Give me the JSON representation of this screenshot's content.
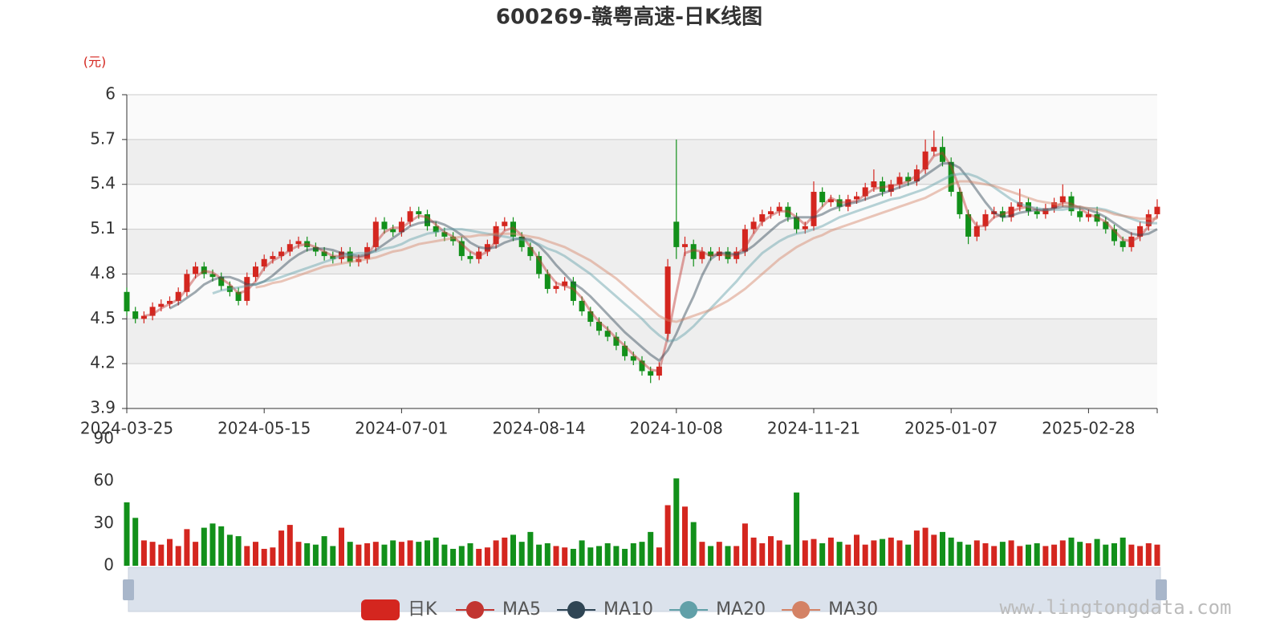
{
  "chart_data": [
    {
      "type": "candlestick",
      "title": "600269-赣粤高速-日K线图",
      "y_unit": "(元)",
      "name": "日K",
      "up_color": "#d4261f",
      "down_color": "#12901a",
      "categories": [
        "2024-03-25",
        null,
        null,
        null,
        null,
        null,
        null,
        null,
        null,
        null,
        null,
        null,
        null,
        null,
        null,
        null,
        "2024-05-15",
        null,
        null,
        null,
        null,
        null,
        null,
        null,
        null,
        null,
        null,
        null,
        null,
        null,
        null,
        null,
        "2024-07-01",
        null,
        null,
        null,
        null,
        null,
        null,
        null,
        null,
        null,
        null,
        null,
        null,
        null,
        null,
        null,
        "2024-08-14",
        null,
        null,
        null,
        null,
        null,
        null,
        null,
        null,
        null,
        null,
        null,
        null,
        null,
        null,
        null,
        "2024-10-08",
        null,
        null,
        null,
        null,
        null,
        null,
        null,
        null,
        null,
        null,
        null,
        null,
        null,
        null,
        null,
        "2024-11-21",
        null,
        null,
        null,
        null,
        null,
        null,
        null,
        null,
        null,
        null,
        null,
        null,
        null,
        null,
        null,
        "2025-01-07",
        null,
        null,
        null,
        null,
        null,
        null,
        null,
        null,
        null,
        null,
        null,
        null,
        null,
        null,
        null,
        "2025-02-28",
        null,
        null,
        null,
        null,
        null,
        null,
        null,
        null
      ],
      "open": [
        4.68,
        4.55,
        4.5,
        4.52,
        4.58,
        4.6,
        4.62,
        4.68,
        4.8,
        4.85,
        4.8,
        4.78,
        4.72,
        4.68,
        4.62,
        4.78,
        4.85,
        4.9,
        4.92,
        4.95,
        5.0,
        5.02,
        4.98,
        4.95,
        4.92,
        4.9,
        4.95,
        4.88,
        4.9,
        4.98,
        5.15,
        5.1,
        5.08,
        5.15,
        5.22,
        5.2,
        5.12,
        5.08,
        5.05,
        5.02,
        4.92,
        4.9,
        4.95,
        5.0,
        5.12,
        5.15,
        5.05,
        4.98,
        4.92,
        4.8,
        4.7,
        4.72,
        4.75,
        4.62,
        4.55,
        4.48,
        4.42,
        4.38,
        4.32,
        4.25,
        4.22,
        4.15,
        4.12,
        4.4,
        5.15,
        4.98,
        5.0,
        4.9,
        4.95,
        4.92,
        4.95,
        4.9,
        4.95,
        5.1,
        5.15,
        5.2,
        5.22,
        5.25,
        5.18,
        5.1,
        5.12,
        5.35,
        5.28,
        5.3,
        5.25,
        5.3,
        5.32,
        5.38,
        5.42,
        5.35,
        5.4,
        5.45,
        5.42,
        5.5,
        5.62,
        5.65,
        5.55,
        5.35,
        5.2,
        5.05,
        5.12,
        5.2,
        5.22,
        5.18,
        5.25,
        5.28,
        5.22,
        5.2,
        5.24,
        5.28,
        5.32,
        5.22,
        5.18,
        5.2,
        5.15,
        5.1,
        5.02,
        4.98,
        5.05,
        5.12,
        5.2
      ],
      "close": [
        4.55,
        4.5,
        4.52,
        4.58,
        4.6,
        4.62,
        4.68,
        4.8,
        4.85,
        4.8,
        4.78,
        4.72,
        4.68,
        4.62,
        4.78,
        4.85,
        4.9,
        4.92,
        4.95,
        5.0,
        5.02,
        4.98,
        4.95,
        4.92,
        4.9,
        4.95,
        4.88,
        4.9,
        4.98,
        5.15,
        5.1,
        5.08,
        5.15,
        5.22,
        5.2,
        5.12,
        5.08,
        5.05,
        5.02,
        4.92,
        4.9,
        4.95,
        5.0,
        5.12,
        5.15,
        5.05,
        4.98,
        4.92,
        4.8,
        4.7,
        4.72,
        4.75,
        4.62,
        4.55,
        4.48,
        4.42,
        4.38,
        4.32,
        4.25,
        4.22,
        4.15,
        4.12,
        4.18,
        4.85,
        4.98,
        5.0,
        4.9,
        4.95,
        4.92,
        4.95,
        4.9,
        4.95,
        5.1,
        5.15,
        5.2,
        5.22,
        5.25,
        5.18,
        5.1,
        5.12,
        5.35,
        5.28,
        5.3,
        5.25,
        5.3,
        5.32,
        5.38,
        5.42,
        5.35,
        5.4,
        5.45,
        5.42,
        5.5,
        5.62,
        5.65,
        5.55,
        5.35,
        5.2,
        5.05,
        5.12,
        5.2,
        5.22,
        5.18,
        5.25,
        5.28,
        5.22,
        5.2,
        5.24,
        5.28,
        5.32,
        5.22,
        5.18,
        5.2,
        5.15,
        5.1,
        5.02,
        4.98,
        5.05,
        5.12,
        5.2,
        5.25
      ],
      "low": [
        4.52,
        4.47,
        4.47,
        4.49,
        4.55,
        4.57,
        4.59,
        4.65,
        4.77,
        4.77,
        4.75,
        4.69,
        4.65,
        4.59,
        4.59,
        4.75,
        4.82,
        4.87,
        4.89,
        4.92,
        4.97,
        4.95,
        4.92,
        4.89,
        4.87,
        4.87,
        4.85,
        4.85,
        4.87,
        4.95,
        5.07,
        5.05,
        5.05,
        5.12,
        5.17,
        5.09,
        5.05,
        5.02,
        4.99,
        4.89,
        4.87,
        4.87,
        4.92,
        4.97,
        5.09,
        5.02,
        4.95,
        4.89,
        4.77,
        4.67,
        4.67,
        4.69,
        4.59,
        4.52,
        4.45,
        4.39,
        4.35,
        4.29,
        4.22,
        4.19,
        4.12,
        4.07,
        4.09,
        4.35,
        4.9,
        4.92,
        4.85,
        4.87,
        4.89,
        4.89,
        4.87,
        4.87,
        4.92,
        5.07,
        5.12,
        5.17,
        5.19,
        5.15,
        5.07,
        5.07,
        5.09,
        5.25,
        5.25,
        5.22,
        5.22,
        5.27,
        5.29,
        5.35,
        5.32,
        5.32,
        5.37,
        5.39,
        5.39,
        5.47,
        5.59,
        5.52,
        5.32,
        5.17,
        5.0,
        5.02,
        5.09,
        5.17,
        5.15,
        5.15,
        5.22,
        5.19,
        5.17,
        5.17,
        5.21,
        5.25,
        5.19,
        5.15,
        5.15,
        5.12,
        5.07,
        4.99,
        4.95,
        4.95,
        5.02,
        5.09,
        5.17
      ],
      "high": [
        4.71,
        4.58,
        4.55,
        4.61,
        4.63,
        4.65,
        4.71,
        4.83,
        4.88,
        4.88,
        4.83,
        4.81,
        4.75,
        4.71,
        4.81,
        4.88,
        4.93,
        4.95,
        4.98,
        5.03,
        5.05,
        5.05,
        5.01,
        4.98,
        4.95,
        4.98,
        4.98,
        4.93,
        5.01,
        5.18,
        5.18,
        5.13,
        5.18,
        5.25,
        5.25,
        5.23,
        5.15,
        5.11,
        5.08,
        5.05,
        4.95,
        4.98,
        5.03,
        5.15,
        5.18,
        5.18,
        5.08,
        5.01,
        4.95,
        4.83,
        4.75,
        4.78,
        4.78,
        4.65,
        4.58,
        4.51,
        4.45,
        4.41,
        4.35,
        4.28,
        4.25,
        4.18,
        4.21,
        4.9,
        5.7,
        5.05,
        5.03,
        4.98,
        4.98,
        4.98,
        4.98,
        4.98,
        5.13,
        5.18,
        5.23,
        5.25,
        5.28,
        5.28,
        5.21,
        5.15,
        5.42,
        5.38,
        5.33,
        5.33,
        5.33,
        5.35,
        5.41,
        5.5,
        5.45,
        5.43,
        5.48,
        5.48,
        5.53,
        5.7,
        5.76,
        5.72,
        5.58,
        5.38,
        5.23,
        5.15,
        5.23,
        5.25,
        5.25,
        5.28,
        5.37,
        5.31,
        5.25,
        5.27,
        5.31,
        5.4,
        5.35,
        5.25,
        5.23,
        5.25,
        5.18,
        5.13,
        5.05,
        5.08,
        5.15,
        5.23,
        5.3
      ],
      "series": [
        {
          "name": "MA5",
          "color": "#c23531",
          "values": [
            null,
            null,
            4.52,
            4.53,
            4.57,
            4.6,
            4.63,
            4.7,
            4.78,
            4.82,
            4.81,
            4.77,
            4.73,
            4.67,
            4.69,
            4.75,
            4.84,
            4.89,
            4.92,
            4.96,
            4.99,
            5.0,
            4.98,
            4.95,
            4.92,
            4.92,
            4.91,
            4.91,
            4.92,
            5.01,
            5.08,
            5.11,
            5.11,
            5.15,
            5.19,
            5.18,
            5.13,
            5.08,
            5.05,
            5.0,
            4.95,
            4.92,
            4.95,
            5.02,
            5.09,
            5.11,
            5.06,
            4.98,
            4.9,
            4.81,
            4.74,
            4.72,
            4.7,
            4.64,
            4.55,
            4.48,
            4.43,
            4.37,
            4.32,
            4.26,
            4.21,
            4.16,
            4.15,
            4.38,
            4.67,
            4.94,
            4.96,
            4.95,
            4.92,
            4.94,
            4.92,
            4.93,
            4.98,
            5.07,
            5.15,
            5.19,
            5.22,
            5.22,
            5.18,
            5.13,
            5.19,
            5.25,
            5.31,
            5.28,
            5.28,
            5.29,
            5.33,
            5.37,
            5.38,
            5.39,
            5.4,
            5.42,
            5.46,
            5.51,
            5.59,
            5.61,
            5.52,
            5.37,
            5.2,
            5.12,
            5.12,
            5.18,
            5.2,
            5.22,
            5.24,
            5.25,
            5.23,
            5.22,
            5.24,
            5.28,
            5.27,
            5.24,
            5.2,
            5.18,
            5.15,
            5.09,
            5.03,
            5.02,
            5.05,
            5.12,
            5.19
          ]
        },
        {
          "name": "MA10",
          "color": "#2f4554",
          "values": [
            null,
            null,
            null,
            null,
            null,
            4.57,
            4.6,
            4.64,
            4.68,
            4.73,
            4.76,
            4.78,
            4.78,
            4.76,
            4.73,
            4.73,
            4.75,
            4.79,
            4.84,
            4.89,
            4.93,
            4.96,
            4.97,
            4.97,
            4.96,
            4.94,
            4.93,
            4.92,
            4.93,
            4.96,
            5.0,
            5.04,
            5.08,
            5.12,
            5.14,
            5.15,
            5.15,
            5.13,
            5.1,
            5.06,
            5.01,
            4.98,
            4.97,
            4.98,
            5.01,
            5.03,
            5.04,
            5.03,
            4.99,
            4.93,
            4.86,
            4.8,
            4.74,
            4.7,
            4.65,
            4.59,
            4.53,
            4.47,
            4.41,
            4.36,
            4.31,
            4.26,
            4.22,
            4.29,
            4.4,
            4.53,
            4.65,
            4.79,
            4.9,
            4.94,
            4.94,
            4.93,
            4.95,
            4.99,
            5.04,
            5.09,
            5.14,
            5.17,
            5.18,
            5.18,
            5.18,
            5.2,
            5.23,
            5.25,
            5.27,
            5.28,
            5.3,
            5.32,
            5.34,
            5.36,
            5.38,
            5.4,
            5.42,
            5.46,
            5.5,
            5.54,
            5.54,
            5.51,
            5.44,
            5.36,
            5.28,
            5.21,
            5.18,
            5.19,
            5.21,
            5.22,
            5.23,
            5.23,
            5.24,
            5.25,
            5.25,
            5.25,
            5.23,
            5.21,
            5.18,
            5.14,
            5.1,
            5.07,
            5.06,
            5.07,
            5.1
          ]
        },
        {
          "name": "MA20",
          "color": "#61a0a8",
          "values": [
            null,
            null,
            null,
            null,
            null,
            null,
            null,
            null,
            null,
            null,
            4.67,
            4.69,
            4.7,
            4.71,
            4.72,
            4.73,
            4.75,
            4.76,
            4.78,
            4.8,
            4.82,
            4.84,
            4.86,
            4.88,
            4.9,
            4.92,
            4.93,
            4.94,
            4.94,
            4.95,
            4.97,
            4.98,
            5.0,
            5.03,
            5.05,
            5.07,
            5.08,
            5.1,
            5.1,
            5.1,
            5.09,
            5.08,
            5.07,
            5.06,
            5.05,
            5.04,
            5.03,
            5.02,
            5.0,
            4.97,
            4.95,
            4.92,
            4.88,
            4.84,
            4.8,
            4.75,
            4.7,
            4.65,
            4.6,
            4.55,
            4.5,
            4.44,
            4.39,
            4.35,
            4.36,
            4.4,
            4.45,
            4.51,
            4.57,
            4.63,
            4.69,
            4.75,
            4.82,
            4.88,
            4.94,
            4.98,
            5.02,
            5.05,
            5.07,
            5.08,
            5.1,
            5.12,
            5.15,
            5.18,
            5.2,
            5.22,
            5.24,
            5.26,
            5.28,
            5.3,
            5.31,
            5.33,
            5.35,
            5.37,
            5.4,
            5.43,
            5.46,
            5.47,
            5.47,
            5.45,
            5.42,
            5.38,
            5.34,
            5.3,
            5.27,
            5.25,
            5.24,
            5.23,
            5.23,
            5.23,
            5.24,
            5.24,
            5.24,
            5.24,
            5.23,
            5.21,
            5.19,
            5.17,
            5.15,
            5.14,
            5.14
          ]
        },
        {
          "name": "MA30",
          "color": "#d48265",
          "values": [
            null,
            null,
            null,
            null,
            null,
            null,
            null,
            null,
            null,
            null,
            null,
            null,
            null,
            null,
            null,
            4.71,
            4.72,
            4.74,
            4.75,
            4.77,
            4.79,
            4.81,
            4.83,
            4.85,
            4.86,
            4.87,
            4.88,
            4.89,
            4.9,
            4.91,
            4.93,
            4.95,
            4.96,
            4.98,
            5.0,
            5.01,
            5.02,
            5.03,
            5.04,
            5.05,
            5.05,
            5.06,
            5.06,
            5.07,
            5.07,
            5.07,
            5.06,
            5.05,
            5.04,
            5.02,
            5.0,
            4.98,
            4.95,
            4.92,
            4.89,
            4.85,
            4.81,
            4.77,
            4.72,
            4.67,
            4.62,
            4.57,
            4.52,
            4.49,
            4.48,
            4.5,
            4.52,
            4.54,
            4.56,
            4.59,
            4.62,
            4.66,
            4.7,
            4.75,
            4.8,
            4.85,
            4.9,
            4.94,
            4.98,
            5.01,
            5.04,
            5.06,
            5.09,
            5.11,
            5.13,
            5.15,
            5.17,
            5.19,
            5.21,
            5.23,
            5.25,
            5.27,
            5.29,
            5.31,
            5.34,
            5.37,
            5.4,
            5.42,
            5.42,
            5.41,
            5.4,
            5.39,
            5.37,
            5.35,
            5.33,
            5.31,
            5.29,
            5.28,
            5.27,
            5.26,
            5.25,
            5.25,
            5.24,
            5.23,
            5.22,
            5.2,
            5.19,
            5.18,
            5.17,
            5.17,
            5.17
          ]
        }
      ],
      "ylim": [
        3.9,
        6
      ],
      "yticks": [
        3.9,
        4.2,
        4.5,
        4.8,
        5.1,
        5.4,
        5.7,
        6
      ],
      "grid": true
    },
    {
      "type": "bar",
      "values": [
        45,
        34,
        18,
        17,
        15,
        19,
        14,
        26,
        17,
        27,
        30,
        28,
        22,
        21,
        14,
        17,
        12,
        13,
        25,
        29,
        17,
        16,
        15,
        21,
        14,
        27,
        17,
        15,
        16,
        17,
        15,
        18,
        17,
        18,
        17,
        18,
        20,
        15,
        12,
        14,
        16,
        12,
        13,
        18,
        20,
        22,
        17,
        24,
        15,
        16,
        14,
        13,
        12,
        18,
        13,
        14,
        16,
        14,
        12,
        16,
        17,
        24,
        13,
        43,
        62,
        42,
        31,
        17,
        14,
        17,
        14,
        14,
        30,
        20,
        16,
        21,
        18,
        15,
        52,
        18,
        19,
        16,
        20,
        17,
        15,
        22,
        15,
        18,
        19,
        20,
        18,
        15,
        25,
        27,
        22,
        24,
        20,
        17,
        15,
        18,
        16,
        14,
        17,
        18,
        14,
        15,
        16,
        14,
        15,
        18,
        20,
        17,
        16,
        19,
        15,
        16,
        20,
        15,
        14,
        16,
        15
      ],
      "ylim": [
        0,
        90
      ],
      "yticks": [
        0,
        30,
        60,
        90
      ]
    }
  ],
  "watermark": "www.lingtongdata.com"
}
